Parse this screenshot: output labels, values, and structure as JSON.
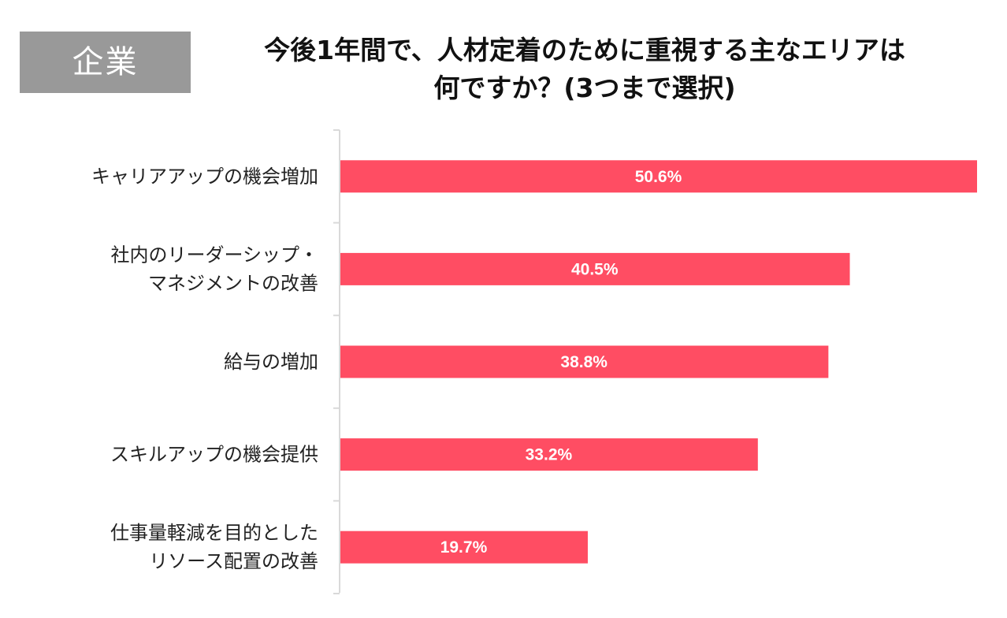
{
  "badge": "企業",
  "chart_data": {
    "type": "bar",
    "orientation": "horizontal",
    "title_lines": [
      "今後1年間で、人材定着のために重視する主なエリアは",
      "何ですか？(3つまで選択)"
    ],
    "categories": [
      [
        "キャリアアップの機会増加"
      ],
      [
        "社内のリーダーシップ・",
        "マネジメントの改善"
      ],
      [
        "給与の増加"
      ],
      [
        "スキルアップの機会提供"
      ],
      [
        "仕事量軽減を目的とした",
        "リソース配置の改善"
      ]
    ],
    "values": [
      50.6,
      40.5,
      38.8,
      33.2,
      19.7
    ],
    "value_labels": [
      "50.6%",
      "40.5%",
      "38.8%",
      "33.2%",
      "19.7%"
    ],
    "xlim": [
      0,
      50.6
    ],
    "grid": false,
    "legend": false,
    "bar_color": "#ff4d63",
    "axis_color": "#d9d9d9"
  }
}
